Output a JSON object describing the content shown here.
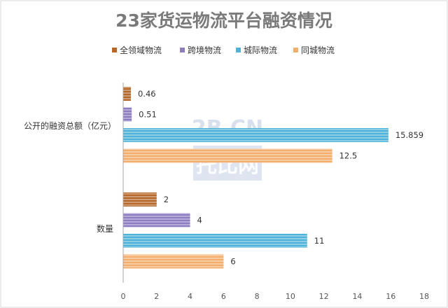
{
  "chart_data": {
    "type": "bar",
    "orientation": "horizontal",
    "title": "23家货运物流平台融资情况",
    "categories": [
      "公开的融资总额（亿元）",
      "数量"
    ],
    "series": [
      {
        "name": "全领域物流",
        "color": "#b5672a",
        "values": [
          0.46,
          2
        ]
      },
      {
        "name": "跨境物流",
        "color": "#8e7cc3",
        "values": [
          0.51,
          4
        ]
      },
      {
        "name": "城际物流",
        "color": "#4fb3d9",
        "values": [
          15.859,
          11
        ]
      },
      {
        "name": "同城物流",
        "color": "#f2ae6d",
        "values": [
          12.5,
          6
        ]
      }
    ],
    "data_labels": [
      [
        "0.46",
        "0.51",
        "15.859",
        "12.5"
      ],
      [
        "2",
        "4",
        "11",
        "6"
      ]
    ],
    "xlim": [
      0,
      18
    ],
    "xticks": [
      0,
      2,
      4,
      6,
      8,
      10,
      12,
      14,
      16,
      18
    ],
    "legend_position": "top",
    "grid": false
  },
  "watermark": {
    "line1": "2B.CN",
    "line2": "托比网"
  }
}
